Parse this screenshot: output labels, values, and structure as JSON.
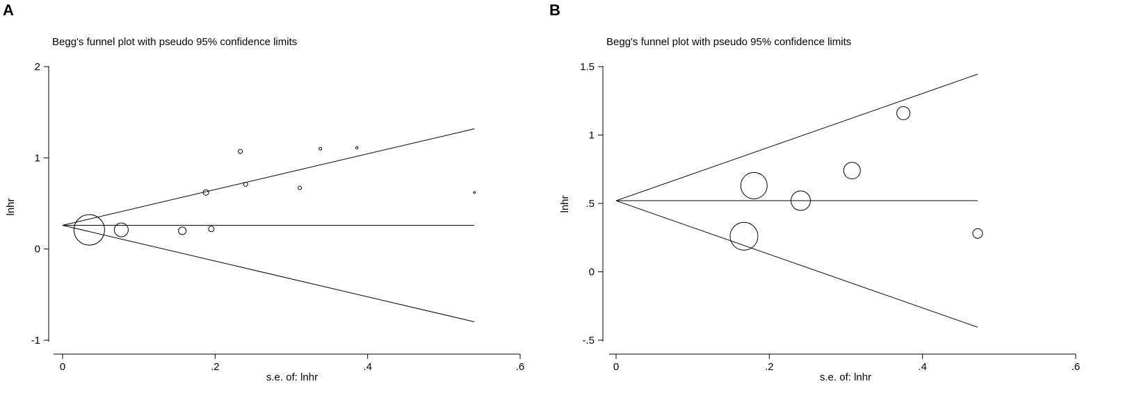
{
  "chart_data": [
    {
      "panel": "A",
      "type": "scatter",
      "title": "Begg's funnel plot with pseudo 95% confidence limits",
      "xlabel": "s.e. of: lnhr",
      "ylabel": "lnhr",
      "xlim": [
        0,
        0.6
      ],
      "ylim": [
        -1,
        2
      ],
      "x_ticks": [
        0,
        0.2,
        0.4,
        0.6
      ],
      "x_tick_labels": [
        "0",
        ".2",
        ".4",
        ".6"
      ],
      "y_ticks": [
        -1,
        0,
        1,
        2
      ],
      "y_tick_labels": [
        "-1",
        "0",
        "1",
        "2"
      ],
      "pooled_estimate": 0.26,
      "funnel_se_max": 0.54,
      "points": [
        {
          "se": 0.035,
          "lnhr": 0.21
        },
        {
          "se": 0.077,
          "lnhr": 0.21
        },
        {
          "se": 0.157,
          "lnhr": 0.2
        },
        {
          "se": 0.188,
          "lnhr": 0.62
        },
        {
          "se": 0.195,
          "lnhr": 0.22
        },
        {
          "se": 0.233,
          "lnhr": 1.07
        },
        {
          "se": 0.24,
          "lnhr": 0.71
        },
        {
          "se": 0.311,
          "lnhr": 0.67
        },
        {
          "se": 0.338,
          "lnhr": 1.1
        },
        {
          "se": 0.386,
          "lnhr": 1.11
        },
        {
          "se": 0.54,
          "lnhr": 0.62
        }
      ]
    },
    {
      "panel": "B",
      "type": "scatter",
      "title": "Begg's funnel plot with pseudo 95% confidence limits",
      "xlabel": "s.e. of: lnhr",
      "ylabel": "lnhr",
      "xlim": [
        0,
        0.6
      ],
      "ylim": [
        -0.5,
        1.5
      ],
      "x_ticks": [
        0,
        0.2,
        0.4,
        0.6
      ],
      "x_tick_labels": [
        "0",
        ".2",
        ".4",
        ".6"
      ],
      "y_ticks": [
        -0.5,
        0,
        0.5,
        1,
        1.5
      ],
      "y_tick_labels": [
        "-.5",
        "0",
        ".5",
        "1",
        "1.5"
      ],
      "pooled_estimate": 0.52,
      "funnel_se_max": 0.472,
      "points": [
        {
          "se": 0.167,
          "lnhr": 0.26
        },
        {
          "se": 0.18,
          "lnhr": 0.63
        },
        {
          "se": 0.241,
          "lnhr": 0.52
        },
        {
          "se": 0.308,
          "lnhr": 0.74
        },
        {
          "se": 0.375,
          "lnhr": 1.16
        },
        {
          "se": 0.472,
          "lnhr": 0.28
        }
      ]
    }
  ]
}
